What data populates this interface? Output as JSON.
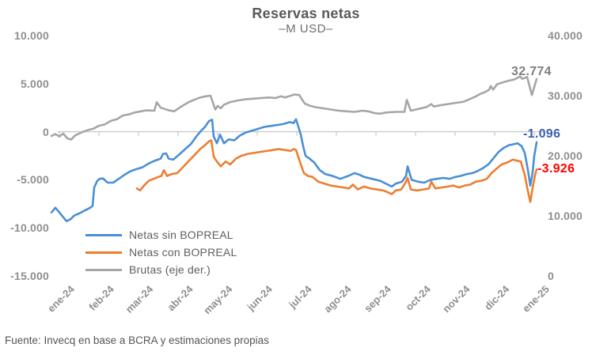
{
  "title": "Reservas netas",
  "subtitle": "–M USD–",
  "source": "Fuente: Invecq en base a BCRA y estimaciones propias",
  "chart_data": {
    "type": "line",
    "title": "Reservas netas",
    "subtitle": "–M USD–",
    "x_unit": "months since Jan-2024 (0 = ene-24)",
    "x_tick_labels": [
      "ene-24",
      "feb-24",
      "mar-24",
      "abr-24",
      "may-24",
      "jun-24",
      "jul-24",
      "ago-24",
      "sep-24",
      "oct-24",
      "nov-24",
      "dic-24",
      "ene-25"
    ],
    "grid": false,
    "zero_line": true,
    "legend_position": "inside-bottom-left",
    "axis_line_color": "#cccccc",
    "left_axis": {
      "ylim": [
        -15000,
        10000
      ],
      "tick_labels": [
        "10.000",
        "5.000",
        "0",
        "-5.000",
        "-10.000",
        "-15.000"
      ],
      "tick_values": [
        10000,
        5000,
        0,
        -5000,
        -10000,
        -15000
      ]
    },
    "right_axis": {
      "ylim": [
        0,
        40000
      ],
      "tick_labels": [
        "40.000",
        "30.000",
        "20.000",
        "10.000",
        "0"
      ],
      "tick_values": [
        40000,
        30000,
        20000,
        10000,
        0
      ]
    },
    "series": [
      {
        "name": "Netas sin BOPREAL",
        "axis": "left",
        "color": "#4a8fd4",
        "end_value": -1096,
        "end_label": "-1.096",
        "end_label_color": "#3a5dae",
        "points": [
          [
            0.04,
            -8400
          ],
          [
            0.14,
            -7900
          ],
          [
            0.22,
            -8300
          ],
          [
            0.32,
            -8800
          ],
          [
            0.42,
            -9300
          ],
          [
            0.52,
            -9100
          ],
          [
            0.62,
            -8700
          ],
          [
            0.74,
            -8500
          ],
          [
            0.88,
            -8200
          ],
          [
            1.02,
            -7900
          ],
          [
            1.08,
            -7700
          ],
          [
            1.12,
            -5800
          ],
          [
            1.2,
            -5100
          ],
          [
            1.26,
            -4900
          ],
          [
            1.34,
            -4850
          ],
          [
            1.46,
            -5300
          ],
          [
            1.6,
            -5300
          ],
          [
            1.74,
            -4900
          ],
          [
            1.88,
            -4500
          ],
          [
            2.04,
            -4100
          ],
          [
            2.18,
            -3900
          ],
          [
            2.34,
            -3700
          ],
          [
            2.5,
            -3300
          ],
          [
            2.66,
            -3000
          ],
          [
            2.8,
            -2800
          ],
          [
            2.86,
            -2300
          ],
          [
            2.94,
            -2250
          ],
          [
            3.0,
            -2800
          ],
          [
            3.12,
            -2900
          ],
          [
            3.26,
            -2400
          ],
          [
            3.42,
            -1800
          ],
          [
            3.56,
            -1300
          ],
          [
            3.7,
            -500
          ],
          [
            3.82,
            100
          ],
          [
            3.92,
            500
          ],
          [
            4.02,
            1100
          ],
          [
            4.1,
            1250
          ],
          [
            4.14,
            -500
          ],
          [
            4.22,
            -1200
          ],
          [
            4.3,
            -300
          ],
          [
            4.4,
            -1200
          ],
          [
            4.52,
            -800
          ],
          [
            4.66,
            -900
          ],
          [
            4.8,
            -400
          ],
          [
            4.94,
            -100
          ],
          [
            5.1,
            100
          ],
          [
            5.26,
            300
          ],
          [
            5.42,
            500
          ],
          [
            5.58,
            600
          ],
          [
            5.74,
            700
          ],
          [
            5.9,
            800
          ],
          [
            6.06,
            1000
          ],
          [
            6.16,
            900
          ],
          [
            6.22,
            1300
          ],
          [
            6.34,
            -300
          ],
          [
            6.4,
            -1500
          ],
          [
            6.46,
            -2500
          ],
          [
            6.56,
            -2800
          ],
          [
            6.68,
            -3200
          ],
          [
            6.82,
            -4000
          ],
          [
            6.96,
            -4400
          ],
          [
            7.14,
            -4600
          ],
          [
            7.34,
            -4900
          ],
          [
            7.54,
            -4600
          ],
          [
            7.7,
            -4300
          ],
          [
            7.84,
            -4500
          ],
          [
            7.94,
            -4700
          ],
          [
            8.14,
            -4900
          ],
          [
            8.34,
            -5100
          ],
          [
            8.54,
            -5500
          ],
          [
            8.64,
            -5700
          ],
          [
            8.74,
            -5400
          ],
          [
            8.9,
            -5200
          ],
          [
            9.0,
            -4600
          ],
          [
            9.04,
            -3600
          ],
          [
            9.14,
            -5000
          ],
          [
            9.3,
            -5200
          ],
          [
            9.46,
            -5300
          ],
          [
            9.62,
            -5000
          ],
          [
            9.78,
            -4900
          ],
          [
            9.94,
            -4800
          ],
          [
            10.1,
            -4900
          ],
          [
            10.24,
            -4700
          ],
          [
            10.38,
            -4600
          ],
          [
            10.54,
            -4400
          ],
          [
            10.68,
            -4300
          ],
          [
            10.8,
            -4100
          ],
          [
            10.94,
            -3800
          ],
          [
            11.08,
            -3400
          ],
          [
            11.22,
            -2700
          ],
          [
            11.34,
            -2100
          ],
          [
            11.46,
            -1700
          ],
          [
            11.6,
            -1400
          ],
          [
            11.72,
            -1300
          ],
          [
            11.82,
            -1200
          ],
          [
            11.92,
            -1500
          ],
          [
            12.0,
            -2200
          ],
          [
            12.08,
            -4000
          ],
          [
            12.14,
            -5600
          ],
          [
            12.2,
            -4200
          ],
          [
            12.24,
            -2500
          ],
          [
            12.3,
            -1096
          ]
        ]
      },
      {
        "name": "Netas con BOPREAL",
        "axis": "left",
        "color": "#ed7d31",
        "end_value": -3926,
        "end_label": "-3.926",
        "end_label_color": "#ff0000",
        "points": [
          [
            2.2,
            -5900
          ],
          [
            2.28,
            -6100
          ],
          [
            2.38,
            -5600
          ],
          [
            2.5,
            -5100
          ],
          [
            2.62,
            -4900
          ],
          [
            2.74,
            -4700
          ],
          [
            2.82,
            -4600
          ],
          [
            2.88,
            -4000
          ],
          [
            2.96,
            -4600
          ],
          [
            3.08,
            -4400
          ],
          [
            3.22,
            -4300
          ],
          [
            3.36,
            -3700
          ],
          [
            3.52,
            -3000
          ],
          [
            3.66,
            -2400
          ],
          [
            3.8,
            -1800
          ],
          [
            3.92,
            -1400
          ],
          [
            4.02,
            -1000
          ],
          [
            4.08,
            -900
          ],
          [
            4.14,
            -2600
          ],
          [
            4.22,
            -3100
          ],
          [
            4.32,
            -3600
          ],
          [
            4.44,
            -3100
          ],
          [
            4.56,
            -3400
          ],
          [
            4.7,
            -2800
          ],
          [
            4.84,
            -2500
          ],
          [
            5.0,
            -2300
          ],
          [
            5.16,
            -2200
          ],
          [
            5.32,
            -2100
          ],
          [
            5.48,
            -2000
          ],
          [
            5.64,
            -1900
          ],
          [
            5.78,
            -1800
          ],
          [
            5.94,
            -1900
          ],
          [
            6.08,
            -2000
          ],
          [
            6.16,
            -1800
          ],
          [
            6.22,
            -1900
          ],
          [
            6.34,
            -3400
          ],
          [
            6.42,
            -4300
          ],
          [
            6.52,
            -4600
          ],
          [
            6.64,
            -4700
          ],
          [
            6.78,
            -5200
          ],
          [
            6.94,
            -5400
          ],
          [
            7.1,
            -5600
          ],
          [
            7.26,
            -5700
          ],
          [
            7.42,
            -5800
          ],
          [
            7.56,
            -5900
          ],
          [
            7.66,
            -5500
          ],
          [
            7.78,
            -6000
          ],
          [
            7.94,
            -5700
          ],
          [
            8.1,
            -5900
          ],
          [
            8.26,
            -6000
          ],
          [
            8.42,
            -6100
          ],
          [
            8.54,
            -6300
          ],
          [
            8.64,
            -6500
          ],
          [
            8.74,
            -6100
          ],
          [
            8.88,
            -6000
          ],
          [
            9.0,
            -5200
          ],
          [
            9.04,
            -4800
          ],
          [
            9.12,
            -6000
          ],
          [
            9.28,
            -6100
          ],
          [
            9.44,
            -6000
          ],
          [
            9.58,
            -5900
          ],
          [
            9.64,
            -5200
          ],
          [
            9.74,
            -5900
          ],
          [
            9.9,
            -5800
          ],
          [
            10.06,
            -5700
          ],
          [
            10.2,
            -5600
          ],
          [
            10.34,
            -5800
          ],
          [
            10.48,
            -5600
          ],
          [
            10.62,
            -5500
          ],
          [
            10.76,
            -5200
          ],
          [
            10.9,
            -5100
          ],
          [
            11.04,
            -4900
          ],
          [
            11.16,
            -4300
          ],
          [
            11.3,
            -3800
          ],
          [
            11.42,
            -3400
          ],
          [
            11.56,
            -3200
          ],
          [
            11.7,
            -2900
          ],
          [
            11.8,
            -3000
          ],
          [
            11.9,
            -3100
          ],
          [
            12.0,
            -4500
          ],
          [
            12.08,
            -6200
          ],
          [
            12.14,
            -7300
          ],
          [
            12.2,
            -5800
          ],
          [
            12.26,
            -4500
          ],
          [
            12.3,
            -3926
          ]
        ]
      },
      {
        "name": "Brutas (eje der.)",
        "axis": "right",
        "color": "#a6a6a6",
        "end_value": 32774,
        "end_label": "32.774",
        "end_label_color": "#7f7f7f",
        "points": [
          [
            0.04,
            23300
          ],
          [
            0.14,
            23600
          ],
          [
            0.24,
            23200
          ],
          [
            0.34,
            23700
          ],
          [
            0.44,
            22900
          ],
          [
            0.54,
            22700
          ],
          [
            0.64,
            23400
          ],
          [
            0.74,
            23700
          ],
          [
            0.84,
            24000
          ],
          [
            0.98,
            24300
          ],
          [
            1.1,
            24500
          ],
          [
            1.24,
            25000
          ],
          [
            1.38,
            25200
          ],
          [
            1.54,
            25800
          ],
          [
            1.7,
            26100
          ],
          [
            1.84,
            26700
          ],
          [
            2.0,
            26900
          ],
          [
            2.14,
            27200
          ],
          [
            2.3,
            27400
          ],
          [
            2.44,
            27550
          ],
          [
            2.64,
            27500
          ],
          [
            2.7,
            28900
          ],
          [
            2.8,
            28000
          ],
          [
            2.98,
            27600
          ],
          [
            3.14,
            27400
          ],
          [
            3.3,
            28100
          ],
          [
            3.5,
            28900
          ],
          [
            3.64,
            29300
          ],
          [
            3.8,
            29700
          ],
          [
            3.94,
            29900
          ],
          [
            4.06,
            30000
          ],
          [
            4.18,
            27700
          ],
          [
            4.24,
            28300
          ],
          [
            4.32,
            27900
          ],
          [
            4.4,
            28500
          ],
          [
            4.54,
            28900
          ],
          [
            4.74,
            29200
          ],
          [
            4.94,
            29400
          ],
          [
            5.14,
            29500
          ],
          [
            5.34,
            29600
          ],
          [
            5.54,
            29700
          ],
          [
            5.7,
            29600
          ],
          [
            5.84,
            29900
          ],
          [
            5.94,
            29700
          ],
          [
            6.04,
            29900
          ],
          [
            6.18,
            30200
          ],
          [
            6.3,
            30100
          ],
          [
            6.44,
            28700
          ],
          [
            6.58,
            28300
          ],
          [
            6.7,
            28100
          ],
          [
            6.9,
            27900
          ],
          [
            7.1,
            27700
          ],
          [
            7.3,
            27500
          ],
          [
            7.5,
            27400
          ],
          [
            7.7,
            27300
          ],
          [
            7.9,
            27500
          ],
          [
            8.04,
            27400
          ],
          [
            8.2,
            27100
          ],
          [
            8.34,
            27000
          ],
          [
            8.5,
            27200
          ],
          [
            8.74,
            27300
          ],
          [
            8.96,
            27300
          ],
          [
            9.02,
            29300
          ],
          [
            9.12,
            27500
          ],
          [
            9.32,
            27800
          ],
          [
            9.52,
            28100
          ],
          [
            9.64,
            28600
          ],
          [
            9.7,
            28200
          ],
          [
            9.86,
            28400
          ],
          [
            10.06,
            28600
          ],
          [
            10.26,
            28800
          ],
          [
            10.46,
            29000
          ],
          [
            10.6,
            29400
          ],
          [
            10.74,
            29800
          ],
          [
            10.88,
            30300
          ],
          [
            11.0,
            30600
          ],
          [
            11.1,
            31000
          ],
          [
            11.14,
            31600
          ],
          [
            11.2,
            31000
          ],
          [
            11.3,
            31900
          ],
          [
            11.44,
            32200
          ],
          [
            11.6,
            32500
          ],
          [
            11.74,
            32700
          ],
          [
            11.88,
            33200
          ],
          [
            11.94,
            32800
          ],
          [
            12.06,
            33100
          ],
          [
            12.18,
            30100
          ],
          [
            12.3,
            32774
          ]
        ]
      }
    ]
  }
}
